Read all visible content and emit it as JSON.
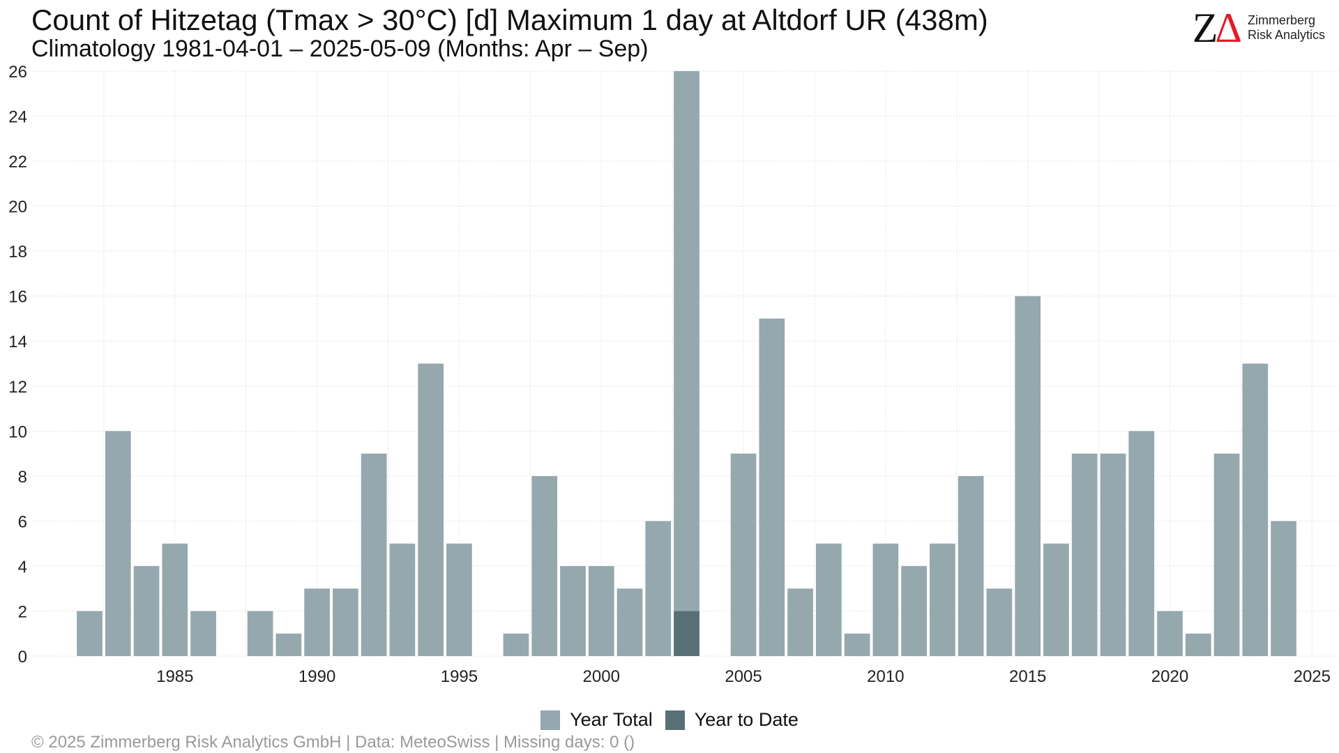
{
  "title": "Count of Hitzetag (Tmax > 30°C) [d] Maximum 1 day at Altdorf  UR (438m)",
  "subtitle": "Climatology 1981-04-01 – 2025-05-09 (Months: Apr – Sep)",
  "logo": {
    "name": "Zimmerberg Risk Analytics",
    "mark_z": "Z",
    "mark_delta": "Δ",
    "text_line1": "Zimmerberg",
    "text_line2": "Risk Analytics"
  },
  "legend": {
    "year_total": "Year Total",
    "year_to_date": "Year to Date"
  },
  "footer": "©  2025 Zimmerberg Risk Analytics GmbH | Data: MeteoSwiss | Missing days: 0 ()",
  "colors": {
    "year_total": "#94a8ae",
    "year_to_date": "#596f76",
    "grid": "#e3e3e3"
  },
  "chart_data": {
    "type": "bar",
    "x": [
      1981,
      1982,
      1983,
      1984,
      1985,
      1986,
      1987,
      1988,
      1989,
      1990,
      1991,
      1992,
      1993,
      1994,
      1995,
      1996,
      1997,
      1998,
      1999,
      2000,
      2001,
      2002,
      2003,
      2004,
      2005,
      2006,
      2007,
      2008,
      2009,
      2010,
      2011,
      2012,
      2013,
      2014,
      2015,
      2016,
      2017,
      2018,
      2019,
      2020,
      2021,
      2022,
      2023,
      2024,
      2025
    ],
    "series": [
      {
        "name": "Year Total",
        "values": [
          0,
          2,
          10,
          4,
          5,
          2,
          0,
          2,
          1,
          3,
          3,
          9,
          5,
          13,
          5,
          0,
          1,
          8,
          4,
          4,
          3,
          6,
          26,
          0,
          9,
          15,
          3,
          5,
          1,
          5,
          4,
          5,
          8,
          3,
          16,
          5,
          9,
          9,
          10,
          2,
          1,
          9,
          13,
          6,
          0
        ]
      },
      {
        "name": "Year to Date",
        "values": [
          0,
          0,
          0,
          0,
          0,
          0,
          0,
          0,
          0,
          0,
          0,
          0,
          0,
          0,
          0,
          0,
          0,
          0,
          0,
          0,
          0,
          0,
          2,
          0,
          0,
          0,
          0,
          0,
          0,
          0,
          0,
          0,
          0,
          0,
          0,
          0,
          0,
          0,
          0,
          0,
          0,
          0,
          0,
          0,
          0
        ]
      }
    ],
    "xlabel": "",
    "ylabel": "",
    "ylim": [
      0,
      26
    ],
    "xlim": [
      1980,
      2025
    ],
    "yticks": [
      0,
      2,
      4,
      6,
      8,
      10,
      12,
      14,
      16,
      18,
      20,
      22,
      24,
      26
    ],
    "xticks": [
      1985,
      1990,
      1995,
      2000,
      2005,
      2010,
      2015,
      2020,
      2025
    ],
    "grid": true,
    "legend_position": "bottom"
  }
}
